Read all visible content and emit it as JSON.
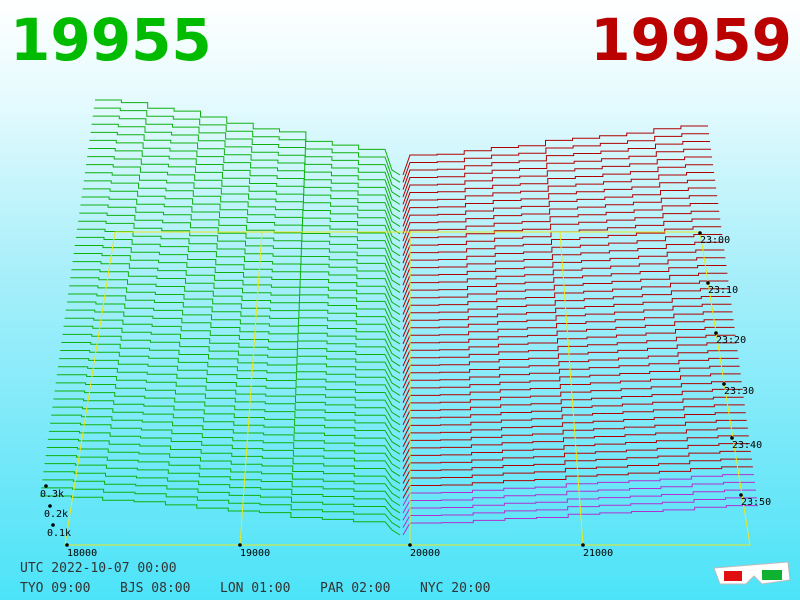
{
  "header": {
    "bid": "19955",
    "ask": "19959"
  },
  "axes": {
    "volume_labels": [
      "0.3k",
      "0.2k",
      "0.1k"
    ],
    "price_labels": [
      "18000",
      "19000",
      "20000",
      "21000"
    ],
    "time_labels": [
      "23:00",
      "23:10",
      "23:20",
      "23:30",
      "23:40",
      "23:50"
    ]
  },
  "footer": {
    "utc": "UTC 2022-10-07 00:00",
    "cities": [
      "TYO 09:00",
      "BJS 08:00",
      "LON 01:00",
      "PAR 02:00",
      "NYC 20:00"
    ]
  }
}
